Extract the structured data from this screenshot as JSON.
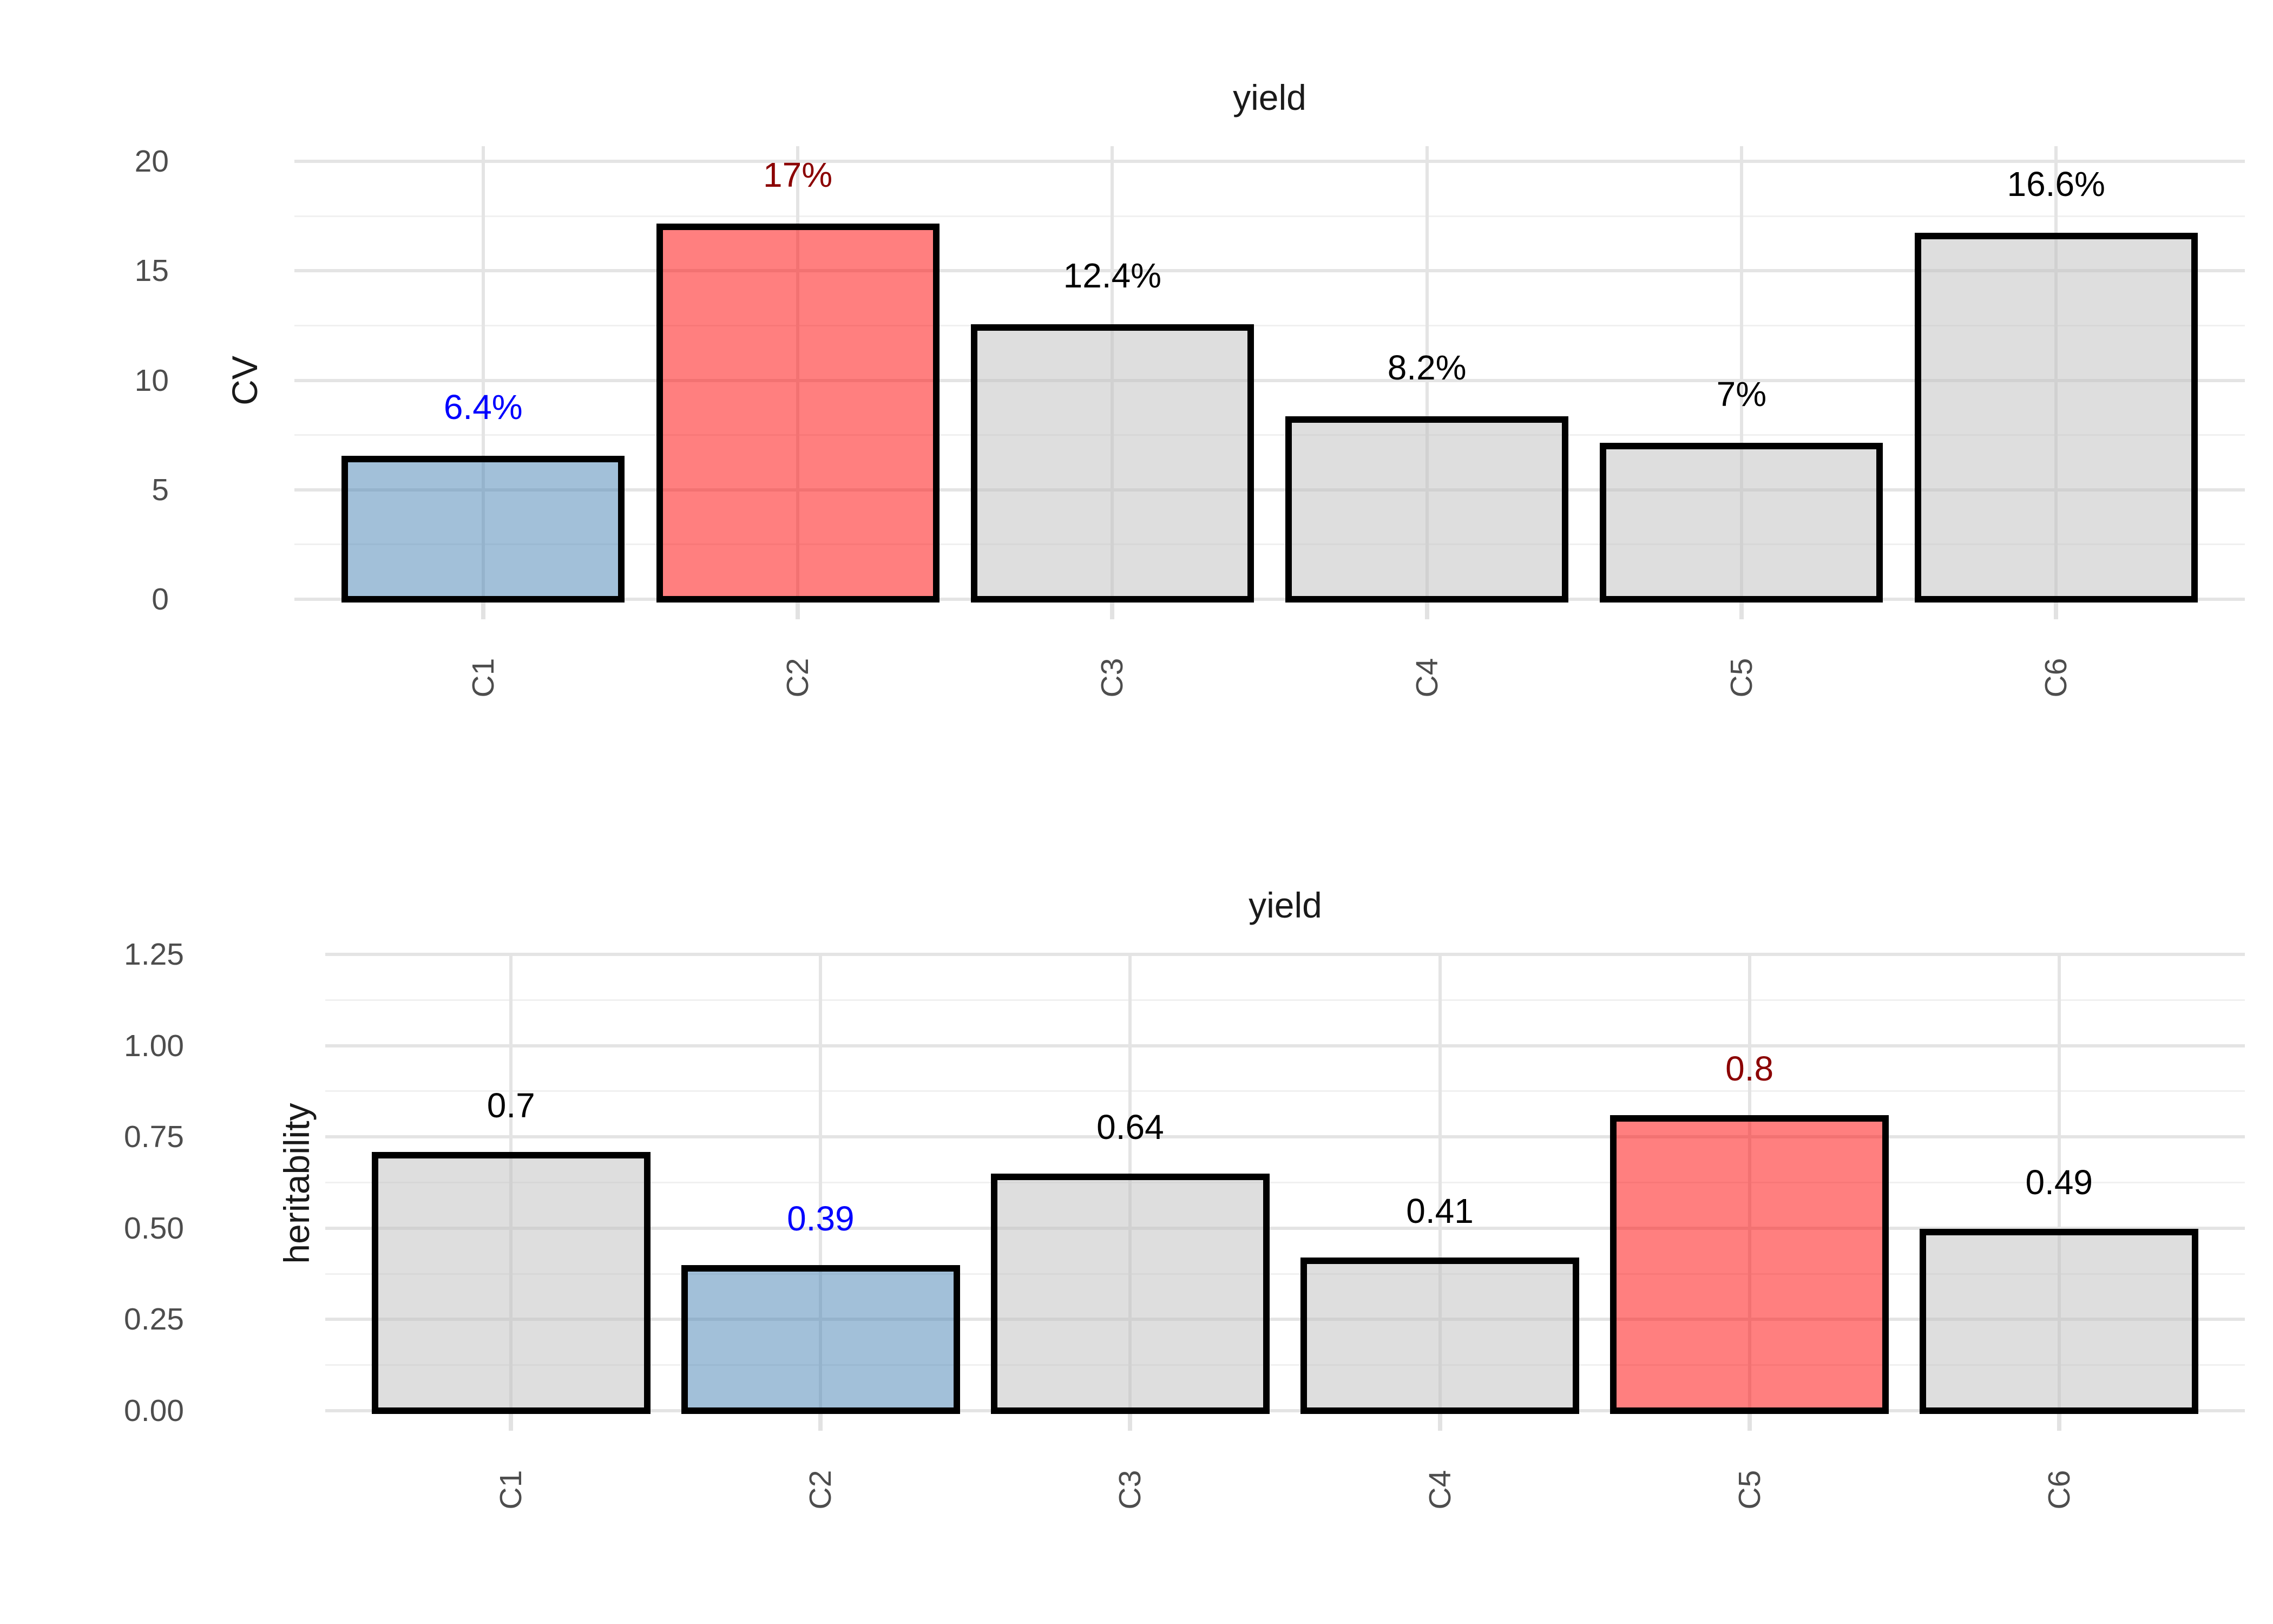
{
  "colors": {
    "background": "#ffffff",
    "grid_major": "#e4e4e4",
    "grid_minor": "#f0f0f0",
    "tick_mark": "#e2e2e2",
    "tick_label": "#4d4d4d",
    "title_text": "#1a1a1a",
    "bar_border": "#000000",
    "highlight_blue_label": "#0000ff",
    "highlight_red_label": "#8b0000",
    "default_label": "#000000",
    "fill_blue": "rgba(70,130,180,0.5)",
    "fill_red": "rgba(255,0,0,0.5)",
    "fill_grey": "rgba(190,190,190,0.5)"
  },
  "chart_data": [
    {
      "type": "bar",
      "title": "yield",
      "xlabel": "",
      "ylabel": "CV",
      "categories": [
        "C1",
        "C2",
        "C3",
        "C4",
        "C5",
        "C6"
      ],
      "values": [
        6.4,
        17,
        12.4,
        8.2,
        7,
        16.6
      ],
      "value_labels": [
        "6.4%",
        "17%",
        "12.4%",
        "8.2%",
        "7%",
        "16.6%"
      ],
      "value_label_colors": [
        "#0000ff",
        "#8b0000",
        "#000000",
        "#000000",
        "#000000",
        "#000000"
      ],
      "bar_fills": [
        "rgba(70,130,180,0.5)",
        "rgba(255,0,0,0.5)",
        "rgba(190,190,190,0.5)",
        "rgba(190,190,190,0.5)",
        "rgba(190,190,190,0.5)",
        "rgba(190,190,190,0.5)"
      ],
      "ylim": [
        0,
        20
      ],
      "yticks": [
        0,
        5,
        10,
        15,
        20
      ],
      "ytick_labels": [
        "0",
        "5",
        "10",
        "15",
        "20"
      ],
      "minor_yticks": [
        2.5,
        7.5,
        12.5,
        17.5
      ],
      "grid": "major+minor, light grey on white",
      "legend": "none"
    },
    {
      "type": "bar",
      "title": "yield",
      "xlabel": "",
      "ylabel": "heritability",
      "categories": [
        "C1",
        "C2",
        "C3",
        "C4",
        "C5",
        "C6"
      ],
      "values": [
        0.7,
        0.39,
        0.64,
        0.41,
        0.8,
        0.49
      ],
      "value_labels": [
        "0.7",
        "0.39",
        "0.64",
        "0.41",
        "0.8",
        "0.49"
      ],
      "value_label_colors": [
        "#000000",
        "#0000ff",
        "#000000",
        "#000000",
        "#8b0000",
        "#000000"
      ],
      "bar_fills": [
        "rgba(190,190,190,0.5)",
        "rgba(70,130,180,0.5)",
        "rgba(190,190,190,0.5)",
        "rgba(190,190,190,0.5)",
        "rgba(255,0,0,0.5)",
        "rgba(190,190,190,0.5)"
      ],
      "ylim": [
        0,
        1.25
      ],
      "yticks": [
        0,
        0.25,
        0.5,
        0.75,
        1.0,
        1.25
      ],
      "ytick_labels": [
        "0.00",
        "0.25",
        "0.50",
        "0.75",
        "1.00",
        "1.25"
      ],
      "minor_yticks": [
        0.125,
        0.375,
        0.625,
        0.875,
        1.125
      ],
      "grid": "major+minor, light grey on white",
      "legend": "none"
    }
  ]
}
